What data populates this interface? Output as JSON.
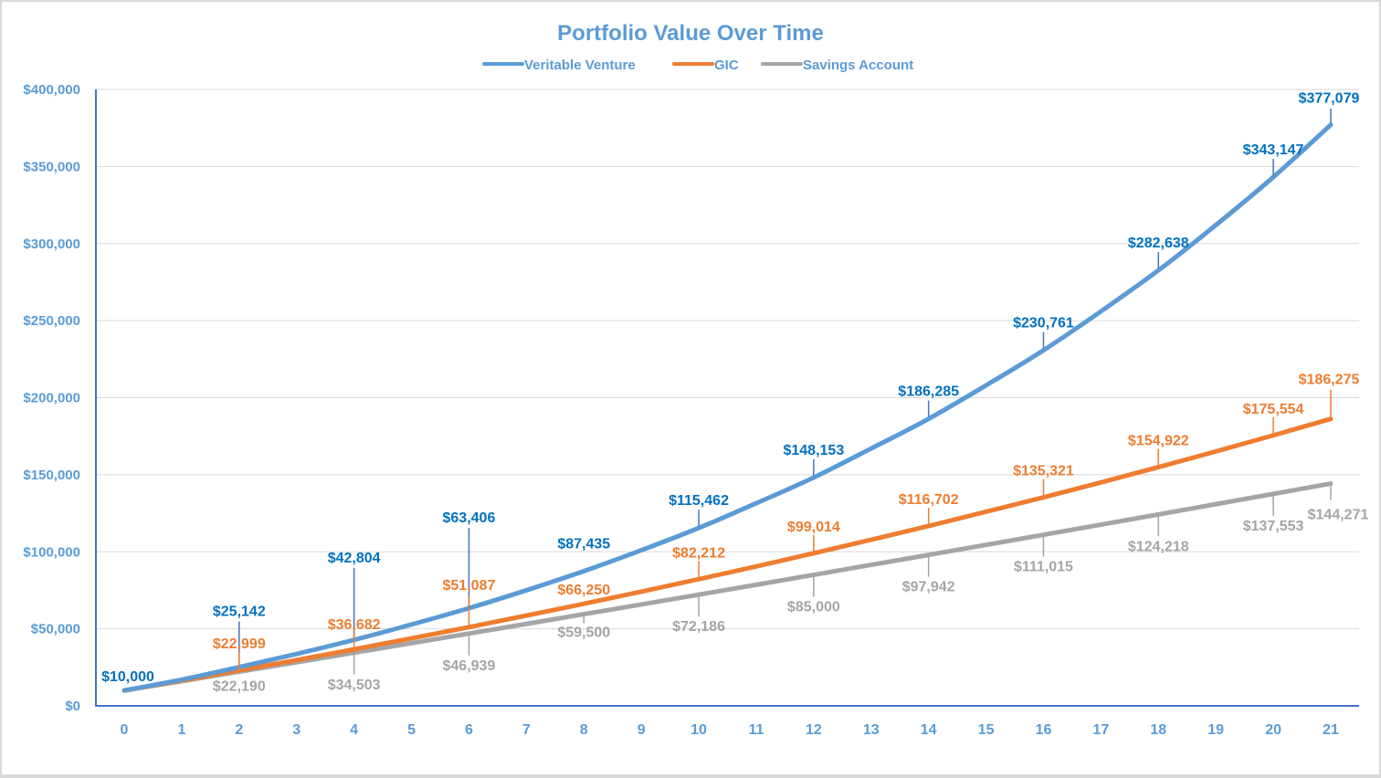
{
  "chart_data": {
    "type": "line",
    "title": "Portfolio Value Over Time",
    "xlabel": "",
    "ylabel": "",
    "x": [
      0,
      1,
      2,
      3,
      4,
      5,
      6,
      7,
      8,
      9,
      10,
      11,
      12,
      13,
      14,
      15,
      16,
      17,
      18,
      19,
      20,
      21
    ],
    "ylim": [
      0,
      400000
    ],
    "yticks": [
      0,
      50000,
      100000,
      150000,
      200000,
      250000,
      300000,
      350000,
      400000
    ],
    "ytick_labels": [
      "$0",
      "$50,000",
      "$100,000",
      "$150,000",
      "$200,000",
      "$250,000",
      "$300,000",
      "$350,000",
      "$400,000"
    ],
    "xtick_labels": [
      "0",
      "1",
      "2",
      "3",
      "4",
      "5",
      "6",
      "7",
      "8",
      "9",
      "10",
      "11",
      "12",
      "13",
      "14",
      "15",
      "16",
      "17",
      "18",
      "19",
      "20",
      "21"
    ],
    "grid": true,
    "legend_position": "top-center",
    "series": [
      {
        "name": "Veritable Venture",
        "color": "#5b9bd5",
        "label_color": "#0070c0",
        "values": [
          10000,
          17000,
          25142,
          33700,
          42804,
          52800,
          63406,
          75000,
          87435,
          101000,
          115462,
          131500,
          148153,
          167000,
          186285,
          208000,
          230761,
          256000,
          282638,
          312000,
          343147,
          377079
        ],
        "labels": [
          {
            "x": 0,
            "text": "$10,000"
          },
          {
            "x": 2,
            "text": "$25,142"
          },
          {
            "x": 4,
            "text": "$42,804"
          },
          {
            "x": 6,
            "text": "$63,406"
          },
          {
            "x": 8,
            "text": "$87,435"
          },
          {
            "x": 10,
            "text": "$115,462"
          },
          {
            "x": 12,
            "text": "$148,153"
          },
          {
            "x": 14,
            "text": "$186,285"
          },
          {
            "x": 16,
            "text": "$230,761"
          },
          {
            "x": 18,
            "text": "$282,638"
          },
          {
            "x": 20,
            "text": "$343,147"
          },
          {
            "x": 21,
            "text": "$377,079"
          }
        ]
      },
      {
        "name": "GIC",
        "color": "#ed7d31",
        "label_color": "#ed7d31",
        "values": [
          10000,
          16400,
          22999,
          29700,
          36682,
          43800,
          51087,
          58600,
          66250,
          74100,
          82212,
          90500,
          99014,
          107800,
          116702,
          126000,
          135321,
          145000,
          154922,
          165100,
          175554,
          186275
        ],
        "labels": [
          {
            "x": 2,
            "text": "$22,999"
          },
          {
            "x": 4,
            "text": "$36,682"
          },
          {
            "x": 6,
            "text": "$51,087"
          },
          {
            "x": 8,
            "text": "$66,250"
          },
          {
            "x": 10,
            "text": "$82,212"
          },
          {
            "x": 12,
            "text": "$99,014"
          },
          {
            "x": 14,
            "text": "$116,702"
          },
          {
            "x": 16,
            "text": "$135,321"
          },
          {
            "x": 18,
            "text": "$154,922"
          },
          {
            "x": 20,
            "text": "$175,554"
          },
          {
            "x": 21,
            "text": "$186,275"
          }
        ]
      },
      {
        "name": "Savings Account",
        "color": "#a5a5a5",
        "label_color": "#a5a5a5",
        "values": [
          10000,
          16000,
          22190,
          28300,
          34503,
          40700,
          46939,
          53200,
          59500,
          65800,
          72186,
          78600,
          85000,
          91500,
          97942,
          104500,
          111015,
          117600,
          124218,
          130900,
          137553,
          144271
        ],
        "labels": [
          {
            "x": 2,
            "text": "$22,190"
          },
          {
            "x": 4,
            "text": "$34,503"
          },
          {
            "x": 6,
            "text": "$46,939"
          },
          {
            "x": 8,
            "text": "$59,500"
          },
          {
            "x": 10,
            "text": "$72,186"
          },
          {
            "x": 12,
            "text": "$85,000"
          },
          {
            "x": 14,
            "text": "$97,942"
          },
          {
            "x": 16,
            "text": "$111,015"
          },
          {
            "x": 18,
            "text": "$124,218"
          },
          {
            "x": 20,
            "text": "$137,553"
          },
          {
            "x": 21,
            "text": "$144,271"
          }
        ]
      }
    ]
  }
}
